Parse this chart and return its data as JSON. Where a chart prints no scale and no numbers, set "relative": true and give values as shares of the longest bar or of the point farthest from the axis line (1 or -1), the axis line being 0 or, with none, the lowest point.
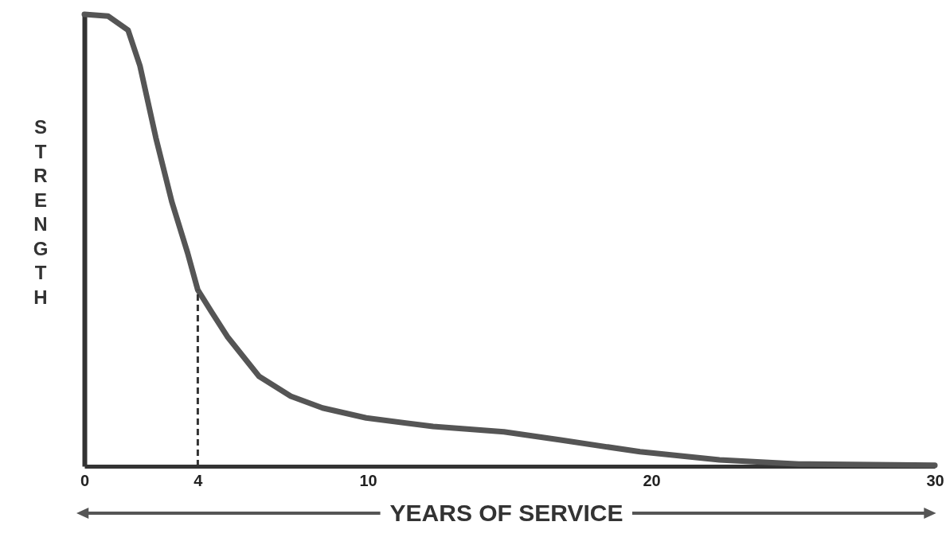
{
  "chart_data": {
    "type": "line",
    "xlabel": "YEARS OF SERVICE",
    "ylabel": "STRENGTH",
    "relative": true,
    "xlim": [
      0,
      30
    ],
    "xticks": [
      0,
      4,
      10,
      20,
      30
    ],
    "tick_labels": "x",
    "marker": "none",
    "line_style": "solid",
    "series": [
      {
        "color": "#555555",
        "x": [
          0,
          0.84,
          1.54,
          1.96,
          2.52,
          3.08,
          3.64,
          4,
          4.5,
          5.04,
          6.16,
          7.28,
          8.4,
          9.94,
          12.3,
          14.8,
          16.8,
          19.6,
          22.4,
          25.2,
          30
        ],
        "values": [
          1.0,
          0.996,
          0.965,
          0.886,
          0.727,
          0.586,
          0.472,
          0.39,
          0.34,
          0.287,
          0.199,
          0.155,
          0.129,
          0.107,
          0.088,
          0.076,
          0.058,
          0.032,
          0.014,
          0.005,
          0.002
        ]
      }
    ],
    "ref_lines": [
      {
        "axis": "x",
        "value": 4,
        "line_style": "dashed",
        "color": "#333333"
      }
    ]
  }
}
